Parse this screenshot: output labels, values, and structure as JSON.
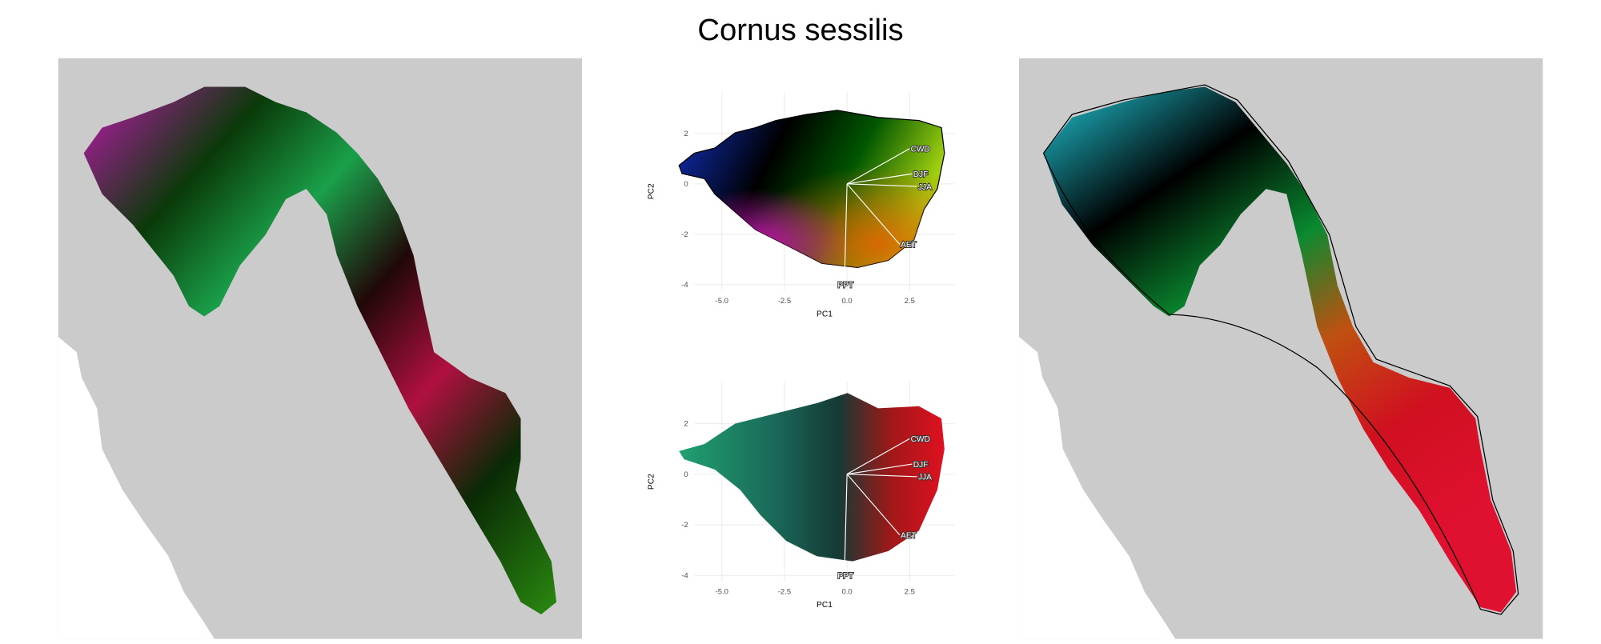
{
  "title": "Cornus sessilis",
  "chart_data": [
    {
      "type": "biplot",
      "xlabel": "PC1",
      "ylabel": "PC2",
      "grid": true,
      "xlim": [
        -6.1,
        4.3
      ],
      "ylim": [
        -4.25,
        3.65
      ],
      "xticks": [
        {
          "value": -5,
          "label": "-5.0"
        },
        {
          "value": -2.5,
          "label": "-2.5"
        },
        {
          "value": 0,
          "label": "0.0"
        },
        {
          "value": 2.5,
          "label": "2.5"
        }
      ],
      "yticks": [
        2,
        0,
        -2,
        -4
      ],
      "vectors": {
        "names": [
          "CWD",
          "DJF",
          "JJA",
          "AET",
          "PPT"
        ],
        "x": [
          2.5,
          2.6,
          2.8,
          2.1,
          -0.1
        ],
        "y": [
          1.4,
          0.4,
          -0.1,
          -2.4,
          -3.8
        ]
      },
      "color_mode": "gradient"
    },
    {
      "type": "biplot",
      "xlabel": "PC1",
      "ylabel": "PC2",
      "grid": true,
      "xlim": [
        -6.1,
        4.3
      ],
      "ylim": [
        -4.25,
        3.65
      ],
      "xticks": [
        {
          "value": -5,
          "label": "-5.0"
        },
        {
          "value": -2.5,
          "label": "-2.5"
        },
        {
          "value": 0,
          "label": "0.0"
        },
        {
          "value": 2.5,
          "label": "2.5"
        }
      ],
      "yticks": [
        2,
        0,
        -2,
        -4
      ],
      "vectors": {
        "names": [
          "CWD",
          "DJF",
          "JJA",
          "AET",
          "PPT"
        ],
        "x": [
          2.5,
          2.6,
          2.8,
          2.1,
          -0.1
        ],
        "y": [
          1.4,
          0.4,
          -0.1,
          -2.4,
          -3.8
        ]
      },
      "color_mode": "clusters"
    }
  ]
}
